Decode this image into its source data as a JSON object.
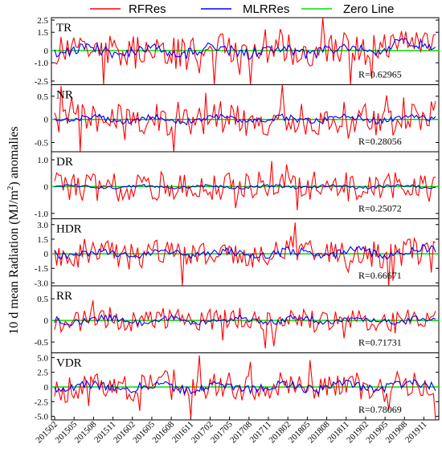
{
  "chart_data": {
    "type": "line",
    "ylabel_main": "10 d mean Radiation (MJ/m",
    "ylabel_sup": "2",
    "ylabel_end": ") anomalies",
    "x_tick_labels": [
      "201502",
      "201505",
      "201508",
      "201511",
      "201602",
      "201605",
      "201608",
      "201611",
      "201702",
      "201705",
      "201708",
      "201711",
      "201802",
      "201805",
      "201808",
      "201811",
      "201902",
      "201905",
      "201908",
      "201911"
    ],
    "legend": [
      {
        "name": "RFRes",
        "color": "#ff0000"
      },
      {
        "name": "MLRRes",
        "color": "#0000ff"
      },
      {
        "name": "Zero Line",
        "color": "#00dd00"
      }
    ],
    "colors": {
      "rf": "#ff0000",
      "mlr": "#0000ff",
      "zero": "#00dd00"
    },
    "panels": [
      {
        "name": "TR",
        "r_label": "R=0.62965",
        "ylim": [
          -2.8,
          2.7
        ],
        "ticks": [
          2.5,
          1.5,
          0,
          -1.0,
          -2.5
        ],
        "tick_labels": [
          "2.5",
          "1.5",
          "0",
          "-1.0",
          "-2.5"
        ],
        "rf_amp": 1.3,
        "mlr_amp": 0.9,
        "seed": 11,
        "trend": 0.5
      },
      {
        "name": "NR",
        "r_label": "R=0.28056",
        "ylim": [
          -0.7,
          0.75
        ],
        "ticks": [
          0.5,
          0,
          -0.5
        ],
        "tick_labels": [
          "0.5",
          "0",
          "-0.5"
        ],
        "rf_amp": 0.35,
        "mlr_amp": 0.15,
        "seed": 23,
        "trend": 0.25
      },
      {
        "name": "DR",
        "r_label": "R=0.25072",
        "ylim": [
          -1.2,
          1.3
        ],
        "ticks": [
          1.0,
          0,
          -1.0
        ],
        "tick_labels": [
          "1.0",
          "0",
          "-1.0"
        ],
        "rf_amp": 0.55,
        "mlr_amp": 0.12,
        "seed": 37,
        "trend": 0.15
      },
      {
        "name": "HDR",
        "r_label": "R=0.66671",
        "ylim": [
          -3.3,
          3.6
        ],
        "ticks": [
          3.0,
          1.5,
          0,
          -1.5,
          -3.0
        ],
        "tick_labels": [
          "3.0",
          "1.5",
          "0",
          "-1.5",
          "-3.0"
        ],
        "rf_amp": 1.4,
        "mlr_amp": 0.9,
        "seed": 41,
        "trend": 0.3
      },
      {
        "name": "RR",
        "r_label": "R=0.71731",
        "ylim": [
          -0.75,
          0.8
        ],
        "ticks": [
          0.5,
          0,
          -0.5
        ],
        "tick_labels": [
          "0.5",
          "0",
          "-0.5"
        ],
        "rf_amp": 0.25,
        "mlr_amp": 0.16,
        "seed": 53,
        "trend": 0.05
      },
      {
        "name": "VDR",
        "r_label": "R=0.78069",
        "ylim": [
          -5.6,
          5.8
        ],
        "ticks": [
          5.0,
          2.5,
          0,
          -2.5,
          -5.0
        ],
        "tick_labels": [
          "5.0",
          "2.5",
          "0",
          "-2.5",
          "-5.0"
        ],
        "rf_amp": 2.2,
        "mlr_amp": 1.5,
        "seed": 67,
        "trend": 0.2
      }
    ]
  }
}
